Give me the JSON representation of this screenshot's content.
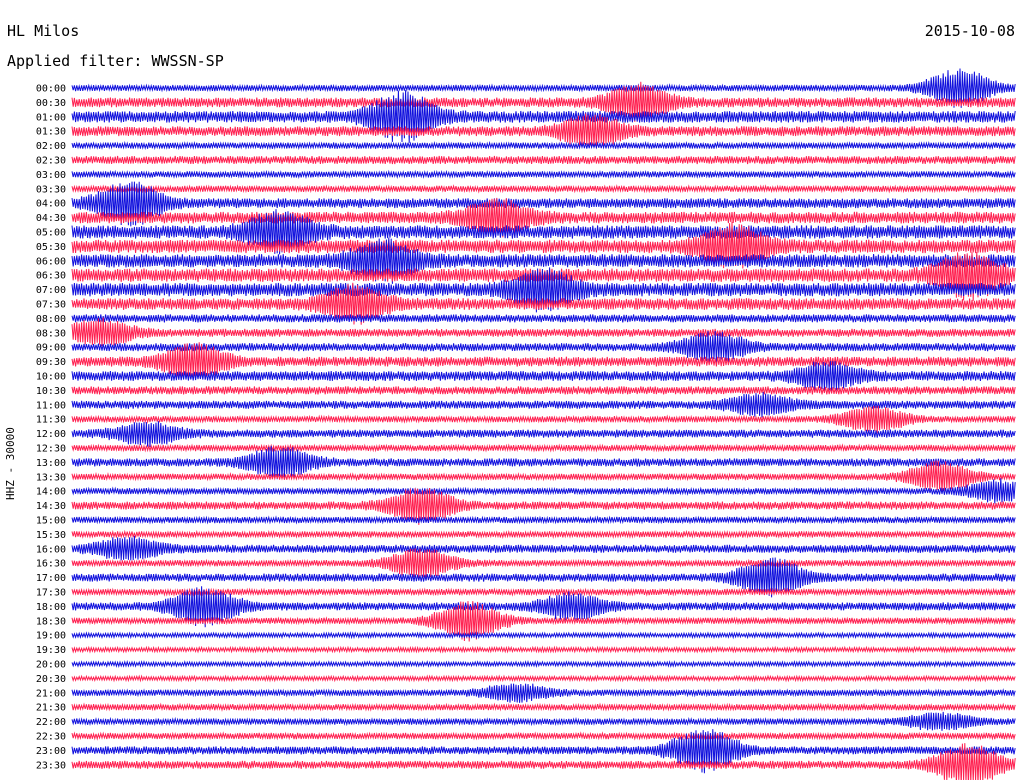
{
  "header": {
    "station": "HL Milos",
    "date": "2015-10-08",
    "filter": "Applied filter: WWSSN-SP"
  },
  "axis": {
    "ylabel": "HHZ - 30000"
  },
  "colors": {
    "trace_a": "#1010dd",
    "trace_b": "#ff2050"
  },
  "chart_data": {
    "type": "line",
    "title": "",
    "ylabel": "HHZ - 30000",
    "row_labels": [
      "00:00",
      "00:30",
      "01:00",
      "01:30",
      "02:00",
      "02:30",
      "03:00",
      "03:30",
      "04:00",
      "04:30",
      "05:00",
      "05:30",
      "06:00",
      "06:30",
      "07:00",
      "07:30",
      "08:00",
      "08:30",
      "09:00",
      "09:30",
      "10:00",
      "10:30",
      "11:00",
      "11:30",
      "12:00",
      "12:30",
      "13:00",
      "13:30",
      "14:00",
      "14:30",
      "15:00",
      "15:30",
      "16:00",
      "16:30",
      "17:00",
      "17:30",
      "18:00",
      "18:30",
      "19:00",
      "19:30",
      "20:00",
      "20:30",
      "21:00",
      "21:30",
      "22:00",
      "22:30",
      "23:00",
      "23:30"
    ],
    "row_activity": [
      1,
      3,
      4,
      3,
      1,
      2,
      1,
      1,
      3,
      4,
      5,
      5,
      5,
      5,
      5,
      4,
      2,
      2,
      2,
      3,
      3,
      2,
      2,
      1,
      2,
      1,
      2,
      1,
      1,
      2,
      1,
      1,
      2,
      1,
      2,
      1,
      2,
      1,
      0,
      0,
      0,
      0,
      1,
      1,
      1,
      1,
      2,
      2
    ],
    "events": [
      {
        "row": 0,
        "time_frac": 0.94,
        "amp": 18
      },
      {
        "row": 1,
        "time_frac": 0.6,
        "amp": 16
      },
      {
        "row": 2,
        "time_frac": 0.35,
        "amp": 22
      },
      {
        "row": 3,
        "time_frac": 0.55,
        "amp": 14
      },
      {
        "row": 8,
        "time_frac": 0.06,
        "amp": 20
      },
      {
        "row": 9,
        "time_frac": 0.45,
        "amp": 16
      },
      {
        "row": 10,
        "time_frac": 0.22,
        "amp": 18
      },
      {
        "row": 11,
        "time_frac": 0.7,
        "amp": 20
      },
      {
        "row": 12,
        "time_frac": 0.33,
        "amp": 18
      },
      {
        "row": 13,
        "time_frac": 0.95,
        "amp": 20
      },
      {
        "row": 14,
        "time_frac": 0.5,
        "amp": 18
      },
      {
        "row": 15,
        "time_frac": 0.3,
        "amp": 16
      },
      {
        "row": 17,
        "time_frac": 0.03,
        "amp": 12
      },
      {
        "row": 18,
        "time_frac": 0.68,
        "amp": 14
      },
      {
        "row": 19,
        "time_frac": 0.13,
        "amp": 16
      },
      {
        "row": 20,
        "time_frac": 0.8,
        "amp": 12
      },
      {
        "row": 22,
        "time_frac": 0.73,
        "amp": 10
      },
      {
        "row": 23,
        "time_frac": 0.85,
        "amp": 12
      },
      {
        "row": 24,
        "time_frac": 0.08,
        "amp": 10
      },
      {
        "row": 26,
        "time_frac": 0.22,
        "amp": 14
      },
      {
        "row": 27,
        "time_frac": 0.92,
        "amp": 14
      },
      {
        "row": 28,
        "time_frac": 0.98,
        "amp": 10
      },
      {
        "row": 29,
        "time_frac": 0.37,
        "amp": 16
      },
      {
        "row": 32,
        "time_frac": 0.06,
        "amp": 10
      },
      {
        "row": 33,
        "time_frac": 0.37,
        "amp": 14
      },
      {
        "row": 34,
        "time_frac": 0.74,
        "amp": 18
      },
      {
        "row": 36,
        "time_frac": 0.14,
        "amp": 18
      },
      {
        "row": 36,
        "time_frac": 0.53,
        "amp": 12
      },
      {
        "row": 37,
        "time_frac": 0.42,
        "amp": 18
      },
      {
        "row": 42,
        "time_frac": 0.47,
        "amp": 8
      },
      {
        "row": 44,
        "time_frac": 0.92,
        "amp": 8
      },
      {
        "row": 46,
        "time_frac": 0.67,
        "amp": 20
      },
      {
        "row": 47,
        "time_frac": 0.95,
        "amp": 20
      }
    ]
  }
}
